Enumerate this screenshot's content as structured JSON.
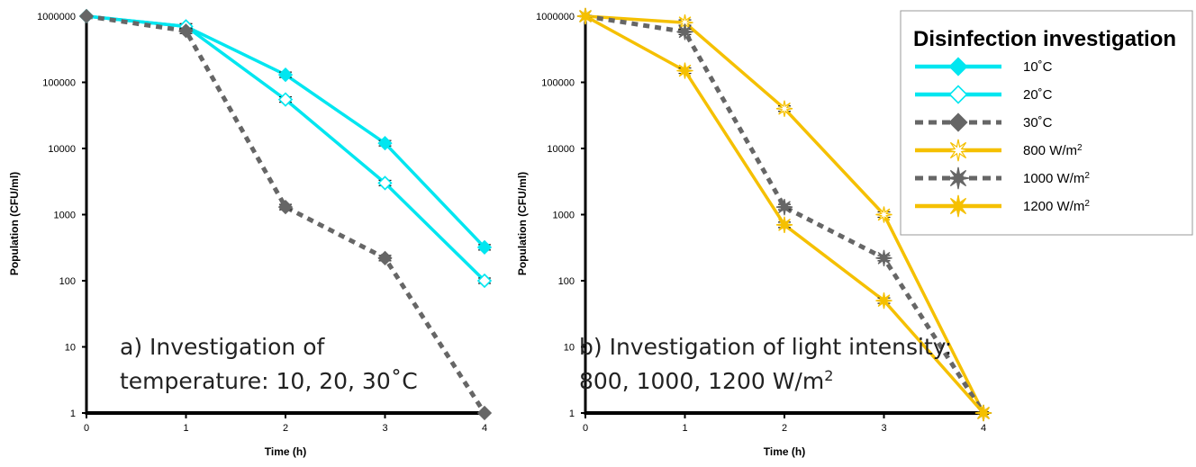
{
  "colors": {
    "cyan": "#00e6f0",
    "grey": "#666666",
    "yellow": "#f5c000",
    "axis": "#000000"
  },
  "legend": {
    "title": "Disinfection investigation",
    "entries": [
      {
        "label": "10˚C",
        "sup": "",
        "color": "#00e6f0",
        "dash": false,
        "marker": "diamond-filled"
      },
      {
        "label": "20˚C",
        "sup": "",
        "color": "#00e6f0",
        "dash": false,
        "marker": "diamond-open"
      },
      {
        "label": "30˚C",
        "sup": "",
        "color": "#666666",
        "dash": true,
        "marker": "diamond-filled"
      },
      {
        "label": "800 W/m",
        "sup": "2",
        "color": "#f5c000",
        "dash": false,
        "marker": "star-open"
      },
      {
        "label": "1000 W/m",
        "sup": "2",
        "color": "#666666",
        "dash": true,
        "marker": "star-filled"
      },
      {
        "label": "1200 W/m",
        "sup": "2",
        "color": "#f5c000",
        "dash": false,
        "marker": "star-filled"
      }
    ]
  },
  "chart_data": [
    {
      "type": "line",
      "title": "",
      "xlabel": "Time (h)",
      "ylabel": "Population (CFU/ml)",
      "yscale": "log",
      "ylim": [
        1,
        1000000
      ],
      "xlim": [
        0,
        4
      ],
      "x": [
        0,
        1,
        2,
        3,
        4
      ],
      "x_ticks": [
        "0",
        "1",
        "2",
        "3",
        "4"
      ],
      "y_ticks": [
        "1",
        "10",
        "100",
        "1000",
        "10000",
        "100000",
        "1000000"
      ],
      "annotation": [
        "a) Investigation of",
        "temperature: 10, 20, 30˚C"
      ],
      "annotation_sup": "",
      "series": [
        {
          "name": "10˚C",
          "values": [
            1000000,
            700000,
            130000,
            12000,
            320
          ],
          "color": "#00e6f0",
          "dash": false,
          "marker": "diamond-filled"
        },
        {
          "name": "20˚C",
          "values": [
            1000000,
            700000,
            55000,
            3000,
            100
          ],
          "color": "#00e6f0",
          "dash": false,
          "marker": "diamond-open"
        },
        {
          "name": "30˚C",
          "values": [
            1000000,
            600000,
            1300,
            220,
            1
          ],
          "color": "#666666",
          "dash": true,
          "marker": "diamond-filled"
        }
      ]
    },
    {
      "type": "line",
      "title": "",
      "xlabel": "Time (h)",
      "ylabel": "Population (CFU/ml)",
      "yscale": "log",
      "ylim": [
        1,
        1000000
      ],
      "xlim": [
        0,
        4
      ],
      "x": [
        0,
        1,
        2,
        3,
        4
      ],
      "x_ticks": [
        "0",
        "1",
        "2",
        "3",
        "4"
      ],
      "y_ticks": [
        "1",
        "10",
        "100",
        "1000",
        "10000",
        "100000",
        "1000000"
      ],
      "annotation": [
        "b) Investigation of light intensity:",
        "800, 1000, 1200 W/m"
      ],
      "annotation_sup": "2",
      "series": [
        {
          "name": "800 W/m²",
          "values": [
            1000000,
            800000,
            40000,
            1000,
            1
          ],
          "color": "#f5c000",
          "dash": false,
          "marker": "star-open"
        },
        {
          "name": "1000 W/m²",
          "values": [
            1000000,
            580000,
            1300,
            220,
            1
          ],
          "color": "#666666",
          "dash": true,
          "marker": "star-filled"
        },
        {
          "name": "1200 W/m²",
          "values": [
            1000000,
            150000,
            700,
            50,
            1
          ],
          "color": "#f5c000",
          "dash": false,
          "marker": "star-filled"
        }
      ]
    }
  ]
}
